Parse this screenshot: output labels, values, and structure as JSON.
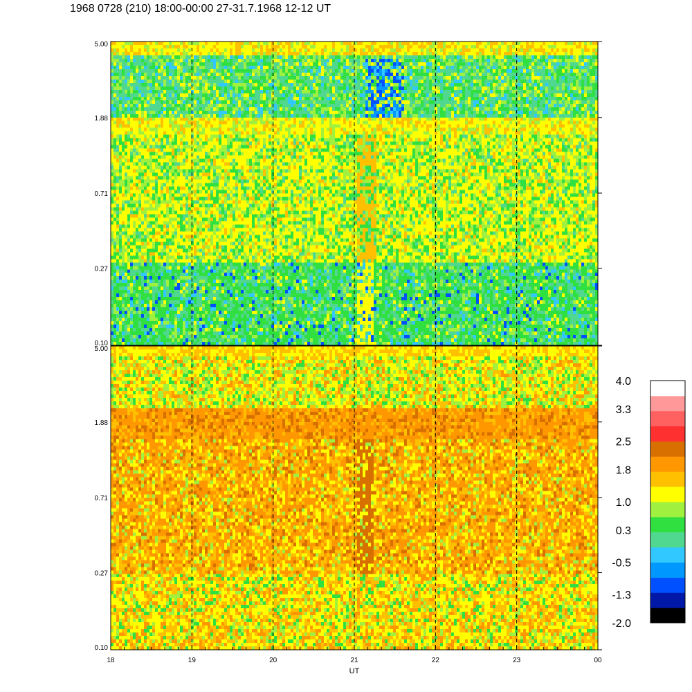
{
  "title": "1968 0728 (210) 18:00-00:00 27-31.7.1968  12-12 UT",
  "colors": {
    "scale": [
      "#000000",
      "#0018a8",
      "#0050ff",
      "#0098ff",
      "#30c8ff",
      "#50d890",
      "#30e040",
      "#a0f040",
      "#ffff00",
      "#ffc000",
      "#ff9800",
      "#d87000",
      "#ff3030",
      "#ff6060",
      "#ff9898",
      "#ffffff"
    ],
    "axes": "#000000"
  },
  "chart_data": [
    {
      "type": "heatmap",
      "panel": "top",
      "title": "",
      "xlabel": "",
      "ylabel": "",
      "xlim": [
        18,
        24
      ],
      "ylim": [
        0.1,
        5.0
      ],
      "yscale": "log",
      "ytick_labels": [
        "0.10",
        "0.27",
        "0.71",
        "1.88",
        "5.00"
      ],
      "dashed_hour_lines": [
        19,
        20,
        21,
        22,
        23
      ],
      "dominant_levels": [
        "green",
        "yellow-green",
        "yellow",
        "cyan"
      ],
      "bright_band_near": 4.2,
      "band_near": 1.9
    },
    {
      "type": "heatmap",
      "panel": "bottom",
      "title": "",
      "xlabel": "UT",
      "ylabel": "",
      "xlim": [
        18,
        24
      ],
      "ylim": [
        0.1,
        5.0
      ],
      "yscale": "log",
      "xtick_labels": [
        "18",
        "19",
        "20",
        "21",
        "22",
        "23",
        "00"
      ],
      "ytick_labels": [
        "0.10",
        "0.27",
        "0.71",
        "1.88",
        "5.00"
      ],
      "dashed_hour_lines": [
        19,
        20,
        21,
        22,
        23
      ],
      "dominant_levels": [
        "orange",
        "yellow",
        "dark-orange"
      ],
      "band_near": 1.9
    }
  ],
  "colorbar": {
    "labels": [
      "4.0",
      "3.3",
      "2.5",
      "1.8",
      "1.0",
      "0.3",
      "-0.5",
      "-1.3",
      "-2.0"
    ],
    "min": -2.0,
    "max": 4.0
  }
}
